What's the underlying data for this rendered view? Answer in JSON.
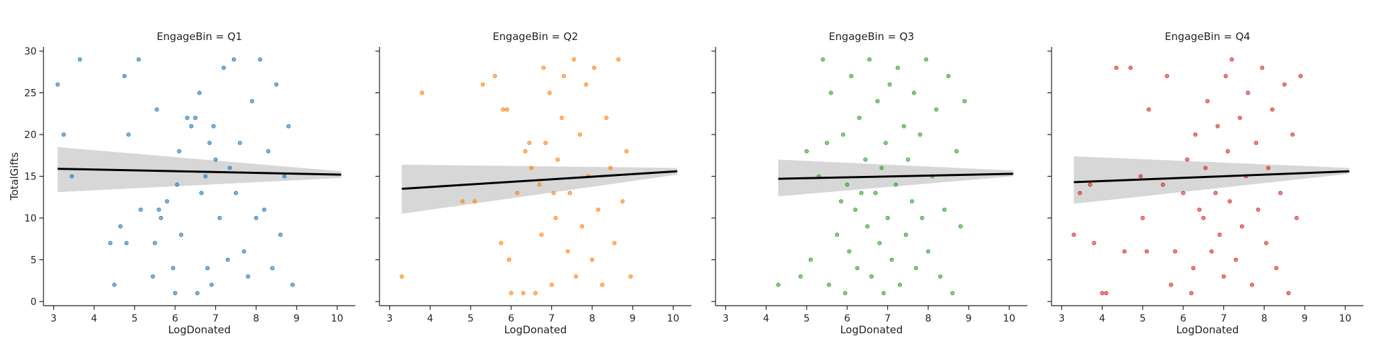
{
  "chart_data": [
    {
      "type": "scatter",
      "title": "EngageBin = Q1",
      "xlabel": "LogDonated",
      "ylabel": "TotalGifts",
      "color": "#1f77b4",
      "xlim": [
        2.75,
        10.45
      ],
      "ylim": [
        -0.5,
        30.5
      ],
      "xticks": [
        "3",
        "4",
        "5",
        "6",
        "7",
        "8",
        "9",
        "10"
      ],
      "yticks": [
        "0",
        "5",
        "10",
        "15",
        "20",
        "25",
        "30"
      ],
      "regression": {
        "x": [
          3.1,
          10.1
        ],
        "y": [
          15.9,
          15.2
        ],
        "ci_low": [
          13.1,
          14.8
        ],
        "ci_high": [
          18.5,
          15.6
        ]
      },
      "points": [
        [
          3.1,
          26
        ],
        [
          3.25,
          20
        ],
        [
          3.45,
          15
        ],
        [
          3.65,
          29
        ],
        [
          4.4,
          7
        ],
        [
          4.5,
          2
        ],
        [
          4.65,
          9
        ],
        [
          4.75,
          27
        ],
        [
          4.8,
          7
        ],
        [
          4.85,
          20
        ],
        [
          5.1,
          29
        ],
        [
          5.15,
          11
        ],
        [
          5.45,
          3
        ],
        [
          5.5,
          7
        ],
        [
          5.55,
          23
        ],
        [
          5.6,
          11
        ],
        [
          5.65,
          10
        ],
        [
          5.8,
          12
        ],
        [
          5.95,
          4
        ],
        [
          6.0,
          1
        ],
        [
          6.05,
          14
        ],
        [
          6.1,
          18
        ],
        [
          6.15,
          8
        ],
        [
          6.3,
          22
        ],
        [
          6.4,
          21
        ],
        [
          6.5,
          22
        ],
        [
          6.55,
          1
        ],
        [
          6.6,
          25
        ],
        [
          6.65,
          13
        ],
        [
          6.75,
          15
        ],
        [
          6.8,
          4
        ],
        [
          6.85,
          19
        ],
        [
          6.9,
          2
        ],
        [
          6.95,
          21
        ],
        [
          7.0,
          17
        ],
        [
          7.1,
          10
        ],
        [
          7.2,
          28
        ],
        [
          7.3,
          5
        ],
        [
          7.35,
          16
        ],
        [
          7.45,
          29
        ],
        [
          7.5,
          13
        ],
        [
          7.6,
          19
        ],
        [
          7.7,
          6
        ],
        [
          7.8,
          3
        ],
        [
          7.9,
          24
        ],
        [
          8.0,
          10
        ],
        [
          8.1,
          29
        ],
        [
          8.2,
          11
        ],
        [
          8.3,
          18
        ],
        [
          8.4,
          4
        ],
        [
          8.5,
          26
        ],
        [
          8.6,
          8
        ],
        [
          8.7,
          15
        ],
        [
          8.8,
          21
        ],
        [
          8.9,
          2
        ]
      ]
    },
    {
      "type": "scatter",
      "title": "EngageBin = Q2",
      "xlabel": "LogDonated",
      "ylabel": "",
      "color": "#ff7f0e",
      "xlim": [
        2.75,
        10.45
      ],
      "ylim": [
        -0.5,
        30.5
      ],
      "xticks": [
        "3",
        "4",
        "5",
        "6",
        "7",
        "8",
        "9",
        "10"
      ],
      "yticks": [
        "0",
        "5",
        "10",
        "15",
        "20",
        "25",
        "30"
      ],
      "regression": {
        "x": [
          3.3,
          10.1
        ],
        "y": [
          13.5,
          15.6
        ],
        "ci_low": [
          10.5,
          15.2
        ],
        "ci_high": [
          16.4,
          16.0
        ]
      },
      "points": [
        [
          3.3,
          3
        ],
        [
          3.8,
          25
        ],
        [
          4.8,
          12
        ],
        [
          5.1,
          12
        ],
        [
          5.3,
          26
        ],
        [
          5.6,
          27
        ],
        [
          5.75,
          7
        ],
        [
          5.8,
          23
        ],
        [
          5.9,
          23
        ],
        [
          5.95,
          5
        ],
        [
          6.0,
          1
        ],
        [
          6.15,
          13
        ],
        [
          6.3,
          1
        ],
        [
          6.35,
          18
        ],
        [
          6.45,
          19
        ],
        [
          6.5,
          16
        ],
        [
          6.6,
          1
        ],
        [
          6.7,
          14
        ],
        [
          6.75,
          8
        ],
        [
          6.8,
          28
        ],
        [
          6.85,
          19
        ],
        [
          6.95,
          25
        ],
        [
          7.0,
          2
        ],
        [
          7.05,
          13
        ],
        [
          7.1,
          10
        ],
        [
          7.15,
          17
        ],
        [
          7.25,
          22
        ],
        [
          7.3,
          27
        ],
        [
          7.4,
          6
        ],
        [
          7.45,
          13
        ],
        [
          7.55,
          29
        ],
        [
          7.6,
          3
        ],
        [
          7.7,
          20
        ],
        [
          7.75,
          9
        ],
        [
          7.85,
          26
        ],
        [
          7.9,
          15
        ],
        [
          8.0,
          5
        ],
        [
          8.05,
          28
        ],
        [
          8.15,
          11
        ],
        [
          8.25,
          2
        ],
        [
          8.35,
          22
        ],
        [
          8.45,
          16
        ],
        [
          8.55,
          7
        ],
        [
          8.65,
          29
        ],
        [
          8.75,
          12
        ],
        [
          8.85,
          18
        ],
        [
          8.95,
          3
        ]
      ]
    },
    {
      "type": "scatter",
      "title": "EngageBin = Q3",
      "xlabel": "LogDonated",
      "ylabel": "",
      "color": "#2ca02c",
      "xlim": [
        2.75,
        10.45
      ],
      "ylim": [
        -0.5,
        30.5
      ],
      "xticks": [
        "3",
        "4",
        "5",
        "6",
        "7",
        "8",
        "9",
        "10"
      ],
      "yticks": [
        "0",
        "5",
        "10",
        "15",
        "20",
        "25",
        "30"
      ],
      "regression": {
        "x": [
          4.3,
          10.1
        ],
        "y": [
          14.7,
          15.3
        ],
        "ci_low": [
          12.6,
          15.0
        ],
        "ci_high": [
          17.0,
          15.7
        ]
      },
      "points": [
        [
          4.3,
          2
        ],
        [
          4.85,
          3
        ],
        [
          5.0,
          18
        ],
        [
          5.1,
          5
        ],
        [
          5.3,
          15
        ],
        [
          5.4,
          29
        ],
        [
          5.5,
          19
        ],
        [
          5.55,
          2
        ],
        [
          5.6,
          25
        ],
        [
          5.75,
          8
        ],
        [
          5.85,
          12
        ],
        [
          5.9,
          20
        ],
        [
          5.95,
          1
        ],
        [
          6.0,
          14
        ],
        [
          6.05,
          6
        ],
        [
          6.1,
          27
        ],
        [
          6.2,
          11
        ],
        [
          6.25,
          4
        ],
        [
          6.3,
          22
        ],
        [
          6.35,
          13
        ],
        [
          6.45,
          17
        ],
        [
          6.5,
          9
        ],
        [
          6.55,
          29
        ],
        [
          6.6,
          3
        ],
        [
          6.7,
          13
        ],
        [
          6.75,
          24
        ],
        [
          6.8,
          7
        ],
        [
          6.85,
          16
        ],
        [
          6.9,
          1
        ],
        [
          6.95,
          19
        ],
        [
          7.0,
          10
        ],
        [
          7.05,
          26
        ],
        [
          7.1,
          5
        ],
        [
          7.2,
          14
        ],
        [
          7.25,
          28
        ],
        [
          7.3,
          2
        ],
        [
          7.4,
          21
        ],
        [
          7.45,
          8
        ],
        [
          7.5,
          17
        ],
        [
          7.6,
          12
        ],
        [
          7.65,
          25
        ],
        [
          7.7,
          4
        ],
        [
          7.8,
          20
        ],
        [
          7.85,
          10
        ],
        [
          7.95,
          29
        ],
        [
          8.0,
          6
        ],
        [
          8.1,
          15
        ],
        [
          8.2,
          23
        ],
        [
          8.3,
          3
        ],
        [
          8.4,
          11
        ],
        [
          8.5,
          27
        ],
        [
          8.6,
          1
        ],
        [
          8.7,
          18
        ],
        [
          8.8,
          9
        ],
        [
          8.9,
          24
        ]
      ]
    },
    {
      "type": "scatter",
      "title": "EngageBin = Q4",
      "xlabel": "LogDonated",
      "ylabel": "",
      "color": "#d62728",
      "xlim": [
        2.75,
        10.45
      ],
      "ylim": [
        -0.5,
        30.5
      ],
      "xticks": [
        "3",
        "4",
        "5",
        "6",
        "7",
        "8",
        "9",
        "10"
      ],
      "yticks": [
        "0",
        "5",
        "10",
        "15",
        "20",
        "25",
        "30"
      ],
      "regression": {
        "x": [
          3.3,
          10.1
        ],
        "y": [
          14.3,
          15.6
        ],
        "ci_low": [
          11.7,
          15.3
        ],
        "ci_high": [
          17.4,
          16.0
        ]
      },
      "points": [
        [
          3.3,
          8
        ],
        [
          3.45,
          13
        ],
        [
          3.7,
          14
        ],
        [
          3.8,
          7
        ],
        [
          4.0,
          1
        ],
        [
          4.1,
          1
        ],
        [
          4.35,
          28
        ],
        [
          4.55,
          6
        ],
        [
          4.7,
          28
        ],
        [
          4.95,
          15
        ],
        [
          5.0,
          10
        ],
        [
          5.1,
          6
        ],
        [
          5.15,
          23
        ],
        [
          5.5,
          14
        ],
        [
          5.6,
          27
        ],
        [
          5.7,
          2
        ],
        [
          5.8,
          6
        ],
        [
          6.0,
          13
        ],
        [
          6.1,
          17
        ],
        [
          6.2,
          1
        ],
        [
          6.25,
          4
        ],
        [
          6.3,
          20
        ],
        [
          6.4,
          11
        ],
        [
          6.5,
          10
        ],
        [
          6.55,
          16
        ],
        [
          6.6,
          24
        ],
        [
          6.7,
          6
        ],
        [
          6.8,
          13
        ],
        [
          6.85,
          21
        ],
        [
          6.9,
          8
        ],
        [
          7.0,
          3
        ],
        [
          7.05,
          27
        ],
        [
          7.1,
          18
        ],
        [
          7.15,
          12
        ],
        [
          7.2,
          29
        ],
        [
          7.3,
          5
        ],
        [
          7.4,
          22
        ],
        [
          7.45,
          9
        ],
        [
          7.55,
          15
        ],
        [
          7.6,
          25
        ],
        [
          7.7,
          2
        ],
        [
          7.8,
          19
        ],
        [
          7.85,
          11
        ],
        [
          7.95,
          28
        ],
        [
          8.05,
          7
        ],
        [
          8.1,
          16
        ],
        [
          8.2,
          23
        ],
        [
          8.3,
          4
        ],
        [
          8.4,
          13
        ],
        [
          8.5,
          26
        ],
        [
          8.6,
          1
        ],
        [
          8.7,
          20
        ],
        [
          8.8,
          10
        ],
        [
          8.9,
          27
        ]
      ]
    }
  ]
}
